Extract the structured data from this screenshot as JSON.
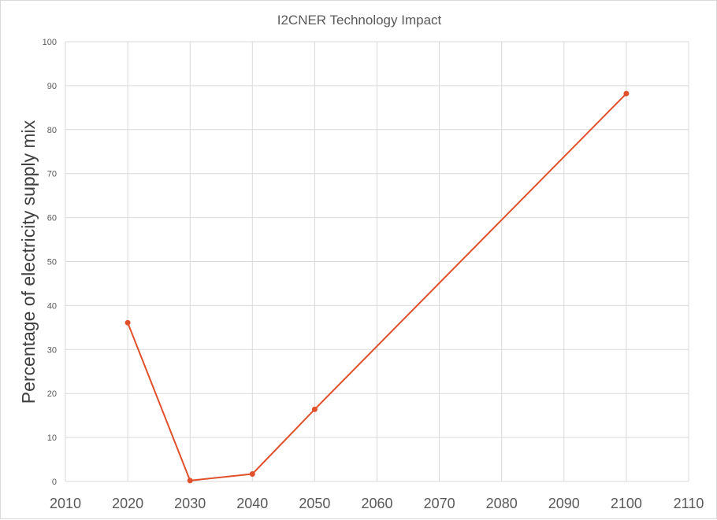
{
  "chart_data": {
    "type": "scatter",
    "title": "I2CNER Technology  Impact",
    "xlabel": "",
    "ylabel": "Percentage of electricity supply mix",
    "xlim": [
      2010,
      2110
    ],
    "ylim": [
      0,
      100
    ],
    "x_ticks": [
      2010,
      2020,
      2030,
      2040,
      2050,
      2060,
      2070,
      2080,
      2090,
      2100,
      2110
    ],
    "y_ticks": [
      0,
      10,
      20,
      30,
      40,
      50,
      60,
      70,
      80,
      90,
      100
    ],
    "grid": true,
    "legend": "none",
    "series": [
      {
        "color": "#e0502a",
        "mode": "lines+markers",
        "x": [
          2020,
          2030,
          2040,
          2050,
          2100
        ],
        "y": [
          36.1,
          0.2,
          1.7,
          16.4,
          88.2
        ]
      }
    ]
  }
}
